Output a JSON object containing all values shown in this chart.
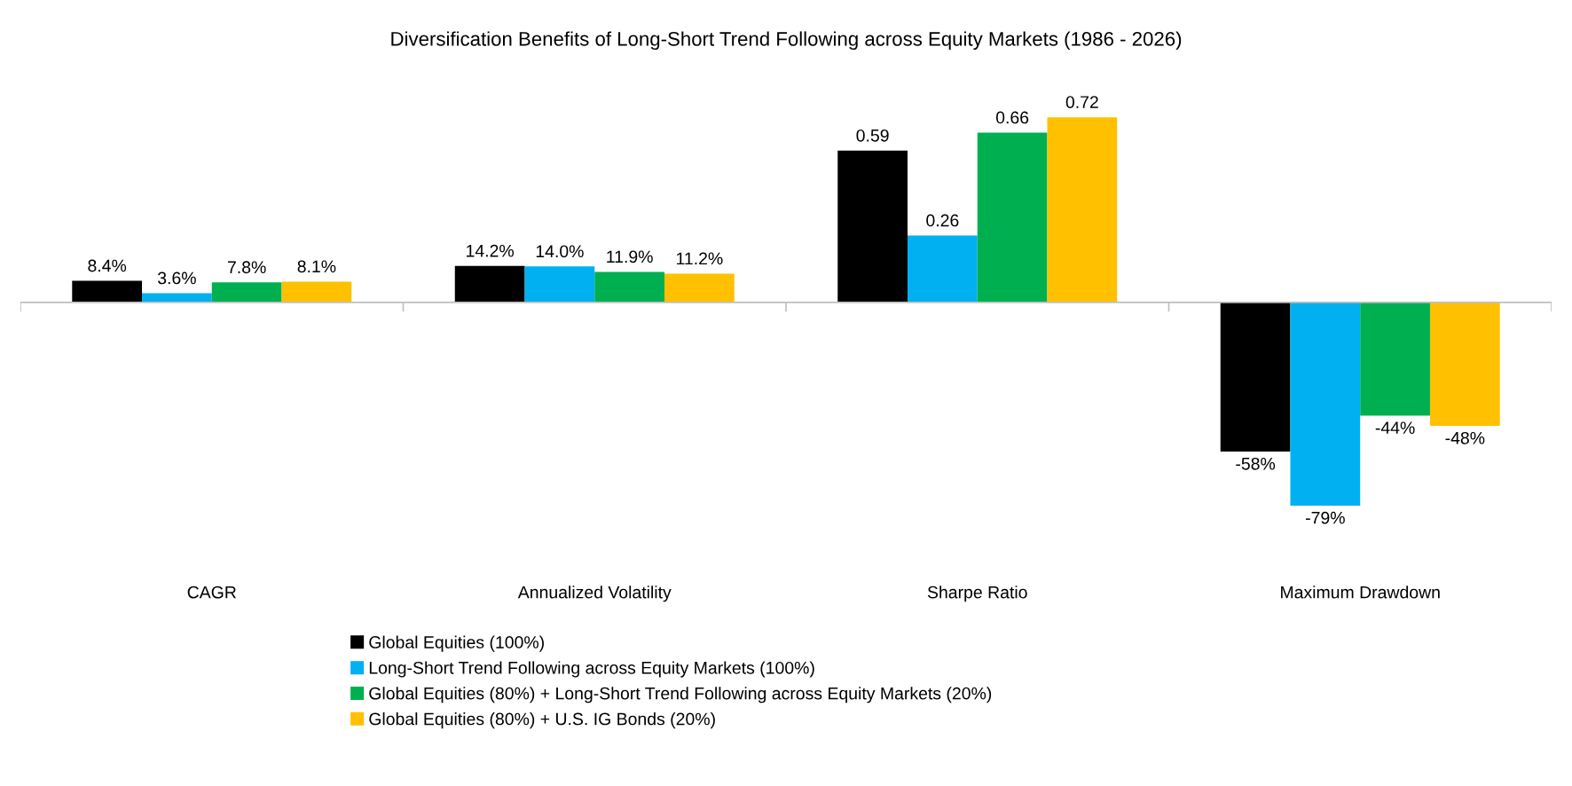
{
  "chart_data": {
    "type": "bar",
    "title": "Diversification Benefits of Long-Short Trend Following across Equity Markets (1986 - 2026)",
    "categories": [
      "CAGR",
      "Annualized Volatility",
      "Sharpe Ratio",
      "Maximum Drawdown"
    ],
    "series": [
      {
        "name": "Global Equities (100%)",
        "color": "#000000",
        "values": [
          0.084,
          0.142,
          0.59,
          -0.58
        ],
        "value_labels": [
          "8.4%",
          "14.2%",
          "0.59",
          "-58%"
        ]
      },
      {
        "name": "Long-Short Trend Following across Equity Markets (100%)",
        "color": "#00b0f0",
        "values": [
          0.036,
          0.14,
          0.26,
          -0.79
        ],
        "value_labels": [
          "3.6%",
          "14.0%",
          "0.26",
          "-79%"
        ]
      },
      {
        "name": "Global Equities (80%) + Long-Short Trend Following across Equity Markets (20%)",
        "color": "#00b050",
        "values": [
          0.078,
          0.119,
          0.66,
          -0.44
        ],
        "value_labels": [
          "7.8%",
          "11.9%",
          "0.66",
          "-44%"
        ]
      },
      {
        "name": "Global Equities (80%) + U.S. IG Bonds (20%)",
        "color": "#ffc000",
        "values": [
          0.081,
          0.112,
          0.72,
          -0.48
        ],
        "value_labels": [
          "8.1%",
          "11.2%",
          "0.72",
          "-48%"
        ]
      }
    ],
    "grid": false,
    "legend": "bottom"
  }
}
